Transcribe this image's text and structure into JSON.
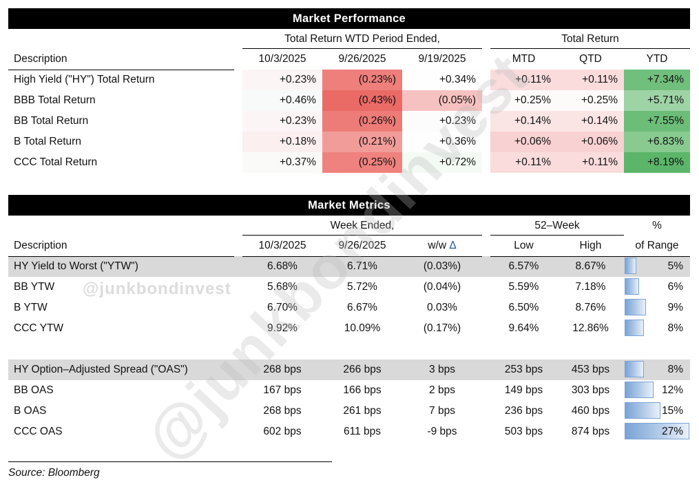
{
  "chart_data": [
    {
      "type": "table",
      "title": "Market Performance",
      "desc_header": "Description",
      "group_headers": {
        "wtd": "Total Return WTD Period Ended,",
        "total": "Total Return"
      },
      "wtd_dates": [
        "10/3/2025",
        "9/26/2025",
        "9/19/2025"
      ],
      "total_cols": [
        "MTD",
        "QTD",
        "YTD"
      ],
      "rows": [
        {
          "desc": "High Yield (\"HY\") Total Return",
          "wtd": [
            {
              "v": "+0.23%",
              "bg": "#fcf5f5"
            },
            {
              "v": "(0.23%)",
              "bg": "#ee7f7b"
            },
            {
              "v": "+0.34%",
              "bg": "#fefefe"
            }
          ],
          "total": [
            {
              "v": "+0.11%",
              "bg": "#fadcdd"
            },
            {
              "v": "+0.11%",
              "bg": "#fadcdd"
            },
            {
              "v": "+7.34%",
              "bg": "#71bf7c"
            }
          ]
        },
        {
          "desc": "BBB Total Return",
          "wtd": [
            {
              "v": "+0.46%",
              "bg": "#f7faf9"
            },
            {
              "v": "(0.43%)",
              "bg": "#ea6a66"
            },
            {
              "v": "(0.05%)",
              "bg": "#f6c2c1"
            }
          ],
          "total": [
            {
              "v": "+0.25%",
              "bg": "#fdfafa"
            },
            {
              "v": "+0.25%",
              "bg": "#fdfafa"
            },
            {
              "v": "+5.71%",
              "bg": "#9ed3a5"
            }
          ]
        },
        {
          "desc": "BB Total Return",
          "wtd": [
            {
              "v": "+0.23%",
              "bg": "#fcf5f5"
            },
            {
              "v": "(0.26%)",
              "bg": "#ed7b77"
            },
            {
              "v": "+0.23%",
              "bg": "#fdfcfc"
            }
          ],
          "total": [
            {
              "v": "+0.14%",
              "bg": "#fbe4e4"
            },
            {
              "v": "+0.14%",
              "bg": "#fbe4e4"
            },
            {
              "v": "+7.55%",
              "bg": "#6cbd77"
            }
          ]
        },
        {
          "desc": "B Total Return",
          "wtd": [
            {
              "v": "+0.18%",
              "bg": "#fbeff0"
            },
            {
              "v": "(0.21%)",
              "bg": "#f19c99"
            },
            {
              "v": "+0.36%",
              "bg": "#fefefe"
            }
          ],
          "total": [
            {
              "v": "+0.06%",
              "bg": "#f8d1d2"
            },
            {
              "v": "+0.06%",
              "bg": "#f8d1d2"
            },
            {
              "v": "+6.83%",
              "bg": "#88ca90"
            }
          ]
        },
        {
          "desc": "CCC Total Return",
          "wtd": [
            {
              "v": "+0.37%",
              "bg": "#fafbf8"
            },
            {
              "v": "(0.25%)",
              "bg": "#ef827e"
            },
            {
              "v": "+0.72%",
              "bg": "#f4faf4"
            }
          ],
          "total": [
            {
              "v": "+0.11%",
              "bg": "#fadcdd"
            },
            {
              "v": "+0.11%",
              "bg": "#fadcdd"
            },
            {
              "v": "+8.19%",
              "bg": "#5cb66a"
            }
          ]
        }
      ]
    },
    {
      "type": "table",
      "title": "Market Metrics",
      "desc_header": "Description",
      "group_headers": {
        "week": "Week Ended,",
        "week52": "52–Week",
        "pct": "%"
      },
      "week_dates": [
        "10/3/2025",
        "9/26/2025"
      ],
      "ww_header": {
        "text": "w/w",
        "delta": "Δ"
      },
      "cols_52": [
        "Low",
        "High"
      ],
      "range_header": "of Range",
      "bar_scale_max": 27,
      "sections": [
        {
          "rows": [
            {
              "desc": "HY Yield to Worst (\"YTW\")",
              "cur": "6.68%",
              "prior": "6.71%",
              "ww": "(0.03%)",
              "low": "6.57%",
              "high": "8.67%",
              "range_pct": 5,
              "range_label": "5%",
              "shaded": true
            },
            {
              "desc": "BB YTW",
              "cur": "5.68%",
              "prior": "5.72%",
              "ww": "(0.04%)",
              "low": "5.59%",
              "high": "7.18%",
              "range_pct": 6,
              "range_label": "6%",
              "shaded": false
            },
            {
              "desc": "B YTW",
              "cur": "6.70%",
              "prior": "6.67%",
              "ww": "0.03%",
              "low": "6.50%",
              "high": "8.76%",
              "range_pct": 9,
              "range_label": "9%",
              "shaded": false
            },
            {
              "desc": "CCC YTW",
              "cur": "9.92%",
              "prior": "10.09%",
              "ww": "(0.17%)",
              "low": "9.64%",
              "high": "12.86%",
              "range_pct": 8,
              "range_label": "8%",
              "shaded": false
            }
          ]
        },
        {
          "rows": [
            {
              "desc": "HY Option–Adjusted Spread (\"OAS\")",
              "cur": "268 bps",
              "prior": "266 bps",
              "ww": "3 bps",
              "low": "253 bps",
              "high": "453 bps",
              "range_pct": 8,
              "range_label": "8%",
              "shaded": true
            },
            {
              "desc": "BB OAS",
              "cur": "167 bps",
              "prior": "166 bps",
              "ww": "2 bps",
              "low": "149 bps",
              "high": "303 bps",
              "range_pct": 12,
              "range_label": "12%",
              "shaded": false
            },
            {
              "desc": "B OAS",
              "cur": "268 bps",
              "prior": "261 bps",
              "ww": "7 bps",
              "low": "236 bps",
              "high": "460 bps",
              "range_pct": 15,
              "range_label": "15%",
              "shaded": false
            },
            {
              "desc": "CCC OAS",
              "cur": "602 bps",
              "prior": "611 bps",
              "ww": "-9 bps",
              "low": "503 bps",
              "high": "874 bps",
              "range_pct": 27,
              "range_label": "27%",
              "shaded": false
            }
          ]
        }
      ]
    }
  ],
  "ui": {
    "source": "Source: Bloomberg",
    "watermark_small": "@junkbondinvest",
    "watermark_large": "@junkbondinvest"
  },
  "colors": {
    "negative_red": "#ee7f7b",
    "positive_green": "#71bf7c",
    "row_shade": "#d9d9d9",
    "bar_fill": "#7aa3d6",
    "delta_blue": "#2456a4",
    "header_bar": "#000000"
  }
}
